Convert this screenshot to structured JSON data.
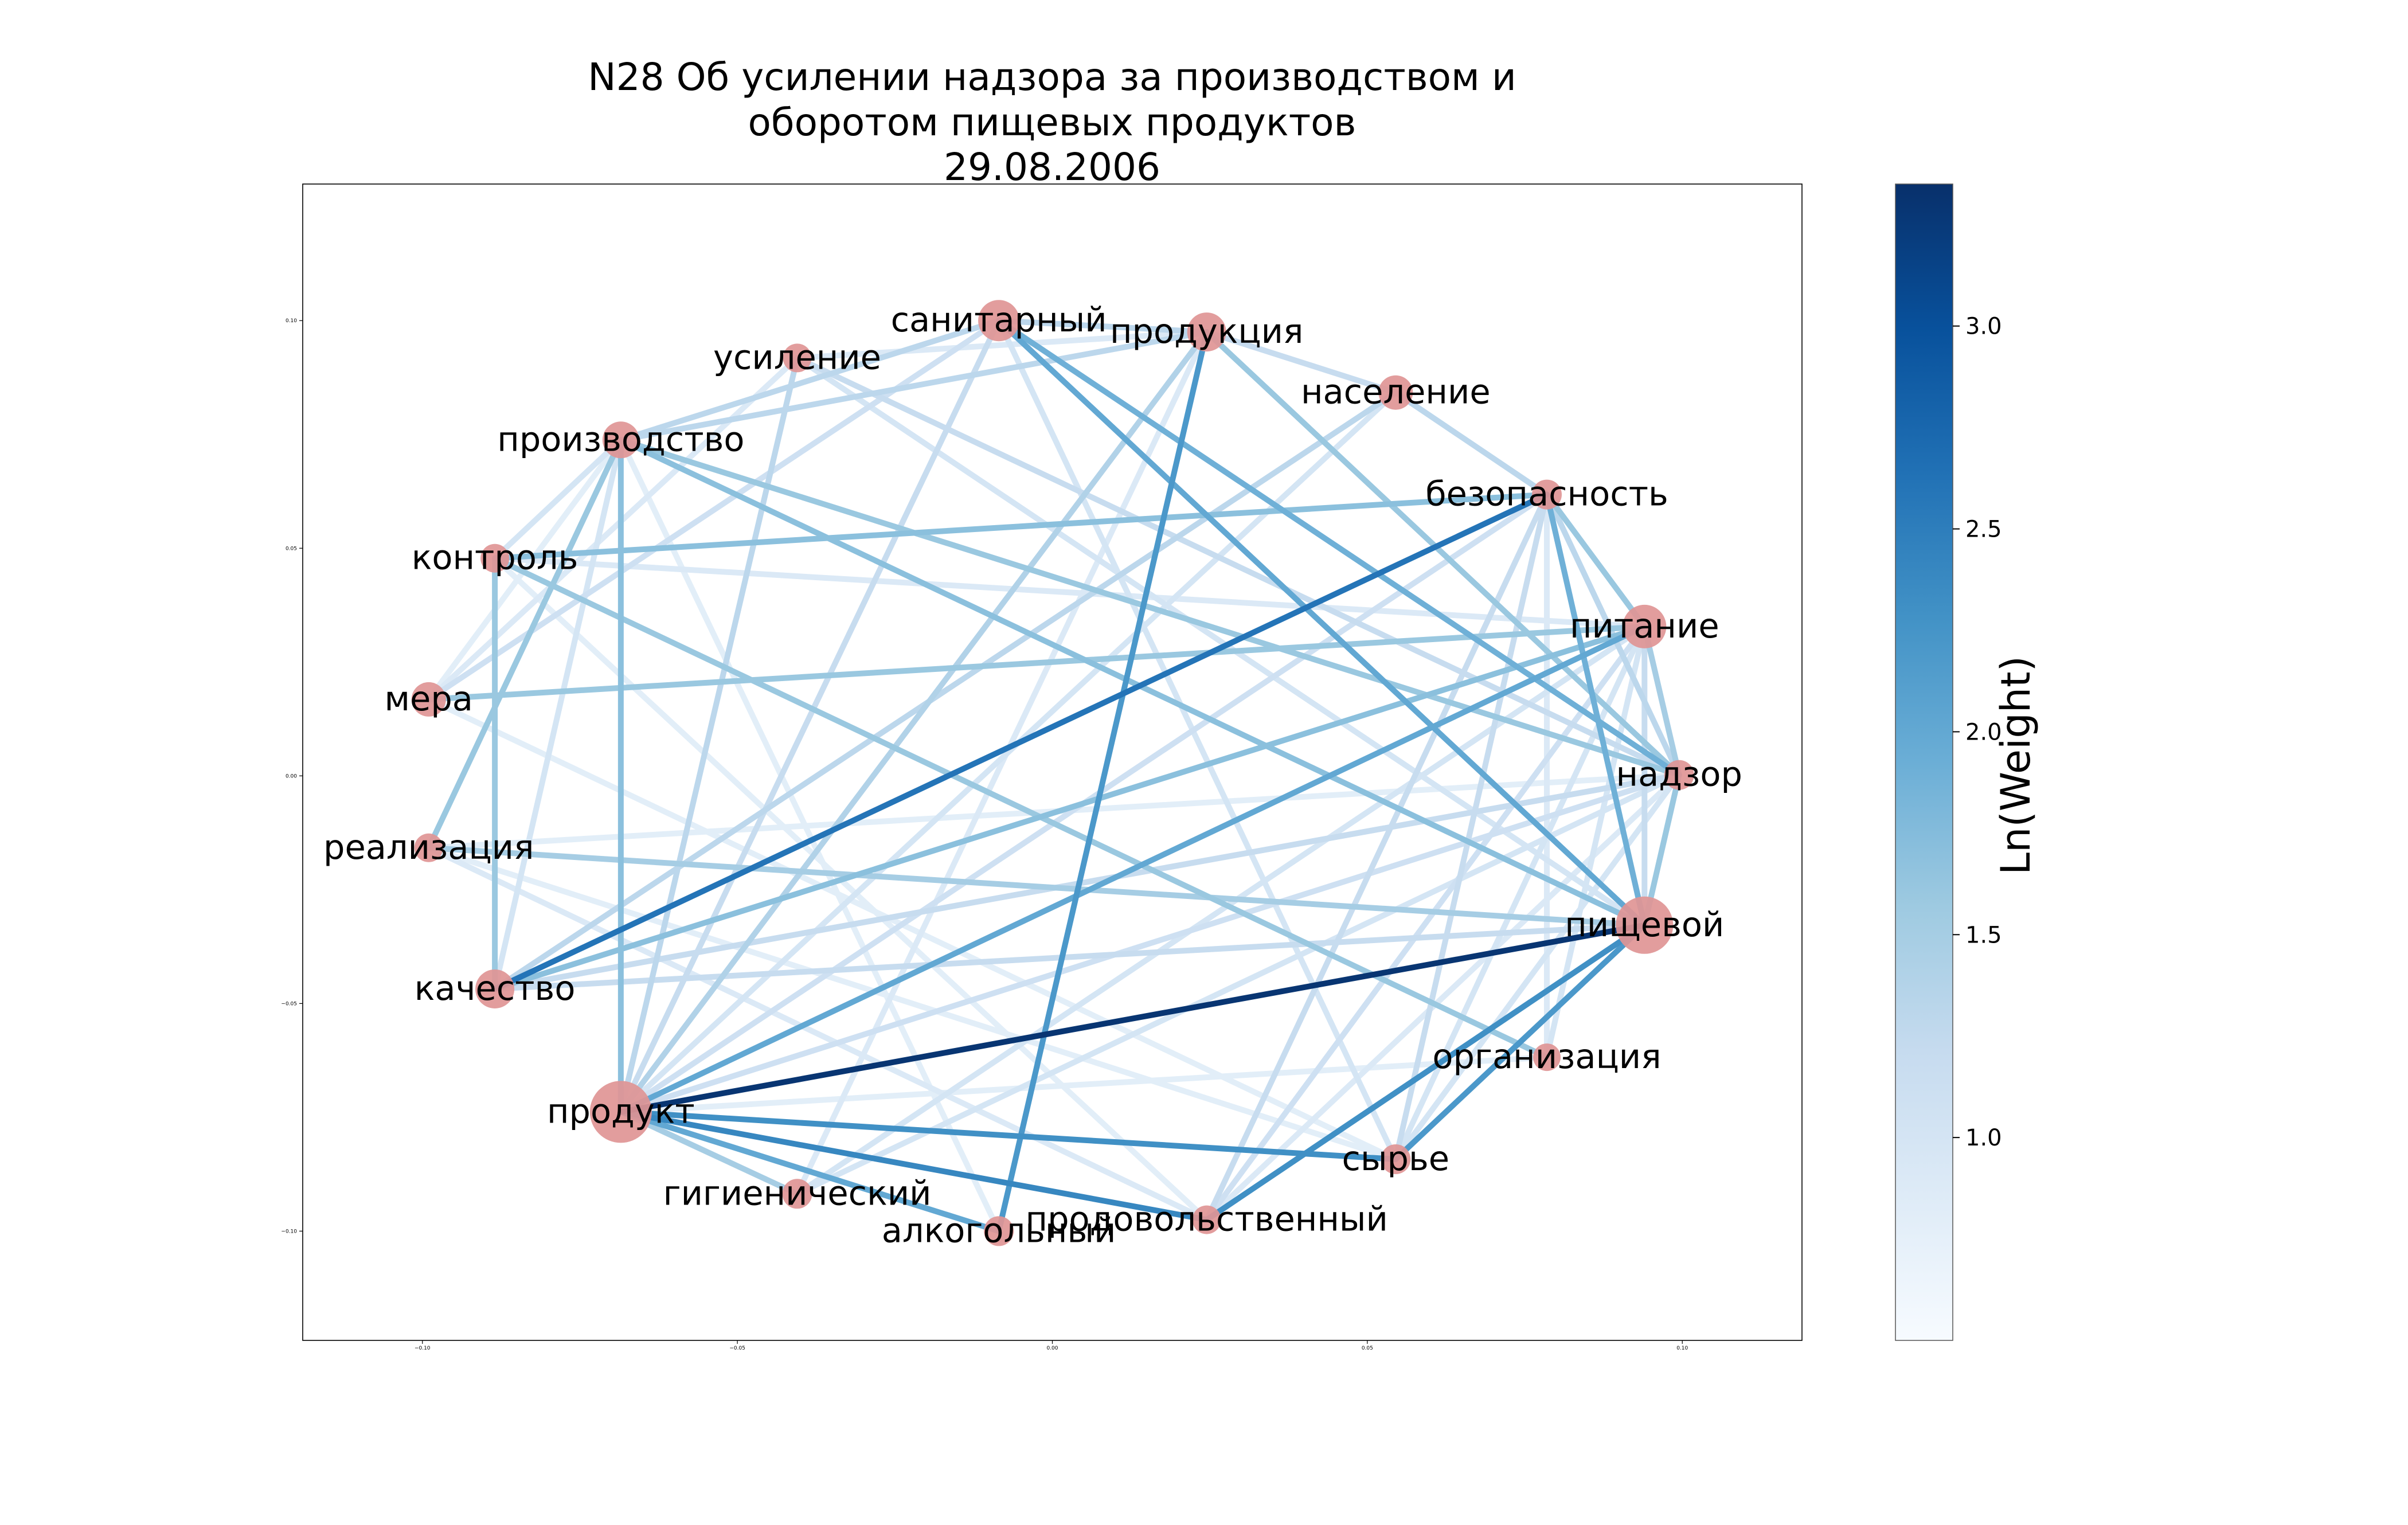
{
  "title_lines": [
    "N28 Об усилении надзора за производством и",
    "оборотом пищевых продуктов",
    "29.08.2006"
  ],
  "colorbar": {
    "label": "Ln(Weight)",
    "min": 0.5,
    "max": 3.35,
    "ticks": [
      "1.0",
      "1.5",
      "2.0",
      "2.5",
      "3.0"
    ],
    "tick_values": [
      1.0,
      1.5,
      2.0,
      2.5,
      3.0
    ],
    "colors": [
      "#f7fbff",
      "#deebf7",
      "#c6dbef",
      "#9ecae1",
      "#6baed6",
      "#4292c6",
      "#2171b5",
      "#08519c",
      "#08306b"
    ]
  },
  "axes": {
    "xticks": [
      "−0.10",
      "−0.05",
      "0.00",
      "0.05",
      "0.10"
    ],
    "xtick_values": [
      -0.1,
      -0.05,
      0.0,
      0.05,
      0.1
    ],
    "yticks": [
      "0.10",
      "0.05",
      "0.00",
      "−0.05",
      "−0.10"
    ],
    "ytick_values": [
      0.1,
      0.05,
      0.0,
      -0.05,
      -0.1
    ],
    "xlim": [
      -0.119,
      0.119
    ],
    "ylim": [
      -0.124,
      0.13
    ]
  },
  "node_color": "#e09595",
  "chart_data": {
    "type": "network",
    "nodes": [
      {
        "id": "санитарный",
        "x": -0.0085,
        "y": 0.1,
        "size": 3
      },
      {
        "id": "продукция",
        "x": 0.0245,
        "y": 0.0975,
        "size": 2.8
      },
      {
        "id": "население",
        "x": 0.0545,
        "y": 0.0842,
        "size": 2.4
      },
      {
        "id": "безопасность",
        "x": 0.0785,
        "y": 0.0618,
        "size": 2
      },
      {
        "id": "питание",
        "x": 0.094,
        "y": 0.0328,
        "size": 3.2
      },
      {
        "id": "надзор",
        "x": 0.0995,
        "y": 0.0002,
        "size": 2
      },
      {
        "id": "пищевой",
        "x": 0.094,
        "y": -0.0328,
        "size": 4.4
      },
      {
        "id": "организация",
        "x": 0.0785,
        "y": -0.0618,
        "size": 1.8
      },
      {
        "id": "сырье",
        "x": 0.0545,
        "y": -0.0842,
        "size": 2
      },
      {
        "id": "продовольственный",
        "x": 0.0245,
        "y": -0.0975,
        "size": 1.9
      },
      {
        "id": "алкогольный",
        "x": -0.0085,
        "y": -0.1,
        "size": 2
      },
      {
        "id": "гигиенический",
        "x": -0.0405,
        "y": -0.0918,
        "size": 2
      },
      {
        "id": "продукт",
        "x": -0.0685,
        "y": -0.0738,
        "size": 4.8
      },
      {
        "id": "качество",
        "x": -0.0885,
        "y": -0.0468,
        "size": 2.8
      },
      {
        "id": "реализация",
        "x": -0.099,
        "y": -0.0158,
        "size": 1.9
      },
      {
        "id": "мера",
        "x": -0.099,
        "y": 0.0168,
        "size": 2.4
      },
      {
        "id": "контроль",
        "x": -0.0885,
        "y": 0.0478,
        "size": 1.9
      },
      {
        "id": "производство",
        "x": -0.0685,
        "y": 0.0738,
        "size": 2.6
      },
      {
        "id": "усиление",
        "x": -0.0405,
        "y": 0.0918,
        "size": 1.9
      }
    ],
    "edges": [
      {
        "source": "продукт",
        "target": "пищевой",
        "weight": 3.3
      },
      {
        "source": "продукт",
        "target": "сырье",
        "weight": 2.3
      },
      {
        "source": "продукт",
        "target": "продовольственный",
        "weight": 2.4
      },
      {
        "source": "пищевой",
        "target": "продовольственный",
        "weight": 2.3
      },
      {
        "source": "пищевой",
        "target": "сырье",
        "weight": 2.2
      },
      {
        "source": "качество",
        "target": "безопасность",
        "weight": 2.6
      },
      {
        "source": "продукция",
        "target": "алкогольный",
        "weight": 2.2
      },
      {
        "source": "санитарный",
        "target": "пищевой",
        "weight": 2.0
      },
      {
        "source": "продукт",
        "target": "питание",
        "weight": 2.0
      },
      {
        "source": "санитарный",
        "target": "надзор",
        "weight": 1.9
      },
      {
        "source": "безопасность",
        "target": "пищевой",
        "weight": 1.9
      },
      {
        "source": "продукт",
        "target": "алкогольный",
        "weight": 2.0
      },
      {
        "source": "производство",
        "target": "продукт",
        "weight": 1.7
      },
      {
        "source": "производство",
        "target": "пищевой",
        "weight": 1.7
      },
      {
        "source": "производство",
        "target": "реализация",
        "weight": 1.6
      },
      {
        "source": "контроль",
        "target": "безопасность",
        "weight": 1.7
      },
      {
        "source": "мера",
        "target": "питание",
        "weight": 1.6
      },
      {
        "source": "продукт",
        "target": "гигиенический",
        "weight": 1.5
      },
      {
        "source": "контроль",
        "target": "организация",
        "weight": 1.6
      },
      {
        "source": "реализация",
        "target": "пищевой",
        "weight": 1.5
      },
      {
        "source": "качество",
        "target": "пищевой",
        "weight": 1.2
      },
      {
        "source": "санитарный",
        "target": "продукция",
        "weight": 1.3
      },
      {
        "source": "продукция",
        "target": "население",
        "weight": 1.2
      },
      {
        "source": "продукция",
        "target": "надзор",
        "weight": 1.6
      },
      {
        "source": "продукция",
        "target": "продукт",
        "weight": 1.4
      },
      {
        "source": "население",
        "target": "безопасность",
        "weight": 1.3
      },
      {
        "source": "население",
        "target": "качество",
        "weight": 1.3
      },
      {
        "source": "безопасность",
        "target": "питание",
        "weight": 1.6
      },
      {
        "source": "безопасность",
        "target": "надзор",
        "weight": 1.3
      },
      {
        "source": "безопасность",
        "target": "сырье",
        "weight": 1.2
      },
      {
        "source": "безопасность",
        "target": "продовольственный",
        "weight": 1.2
      },
      {
        "source": "питание",
        "target": "надзор",
        "weight": 1.5
      },
      {
        "source": "питание",
        "target": "продовольственный",
        "weight": 1.1
      },
      {
        "source": "питание",
        "target": "сырье",
        "weight": 1.0
      },
      {
        "source": "питание",
        "target": "качество",
        "weight": 1.7
      },
      {
        "source": "надзор",
        "target": "пищевой",
        "weight": 1.6
      },
      {
        "source": "надзор",
        "target": "качество",
        "weight": 1.2
      },
      {
        "source": "надзор",
        "target": "реализация",
        "weight": 0.8
      },
      {
        "source": "надзор",
        "target": "производство",
        "weight": 1.6
      },
      {
        "source": "надзор",
        "target": "гигиенический",
        "weight": 1.0
      },
      {
        "source": "надзор",
        "target": "продукт",
        "weight": 1.1
      },
      {
        "source": "продукция",
        "target": "производство",
        "weight": 1.3
      },
      {
        "source": "санитарный",
        "target": "производство",
        "weight": 1.3
      },
      {
        "source": "санитарный",
        "target": "мера",
        "weight": 1.1
      },
      {
        "source": "санитарный",
        "target": "продукт",
        "weight": 1.2
      },
      {
        "source": "санитарный",
        "target": "сырье",
        "weight": 1.0
      },
      {
        "source": "усиление",
        "target": "продукт",
        "weight": 1.3
      },
      {
        "source": "усиление",
        "target": "надзор",
        "weight": 1.2
      },
      {
        "source": "усиление",
        "target": "продукция",
        "weight": 0.9
      },
      {
        "source": "усиление",
        "target": "пищевой",
        "weight": 1.0
      },
      {
        "source": "контроль",
        "target": "качество",
        "weight": 1.6
      },
      {
        "source": "контроль",
        "target": "производство",
        "weight": 1.0
      },
      {
        "source": "контроль",
        "target": "питание",
        "weight": 0.9
      },
      {
        "source": "мера",
        "target": "усиление",
        "weight": 0.9
      },
      {
        "source": "мера",
        "target": "производство",
        "weight": 0.8
      },
      {
        "source": "реализация",
        "target": "продовольственный",
        "weight": 0.9
      },
      {
        "source": "реализация",
        "target": "сырье",
        "weight": 0.8
      },
      {
        "source": "качество",
        "target": "надзор",
        "weight": 1.0
      },
      {
        "source": "качество",
        "target": "производство",
        "weight": 1.0
      },
      {
        "source": "продукт",
        "target": "безопасность",
        "weight": 1.1
      },
      {
        "source": "продукт",
        "target": "организация",
        "weight": 0.8
      },
      {
        "source": "продукт",
        "target": "население",
        "weight": 1.0
      },
      {
        "source": "гигиенический",
        "target": "питание",
        "weight": 1.0
      },
      {
        "source": "гигиенический",
        "target": "продукция",
        "weight": 0.9
      },
      {
        "source": "алкогольный",
        "target": "производство",
        "weight": 0.8
      },
      {
        "source": "продовольственный",
        "target": "надзор",
        "weight": 0.9
      },
      {
        "source": "организация",
        "target": "безопасность",
        "weight": 0.9
      },
      {
        "source": "организация",
        "target": "питание",
        "weight": 1.0
      },
      {
        "source": "сырье",
        "target": "надзор",
        "weight": 1.0
      },
      {
        "source": "пищевой",
        "target": "питание",
        "weight": 1.2
      },
      {
        "source": "сырье",
        "target": "мера",
        "weight": 0.8
      },
      {
        "source": "продовольственный",
        "target": "контроль",
        "weight": 0.8
      }
    ]
  }
}
